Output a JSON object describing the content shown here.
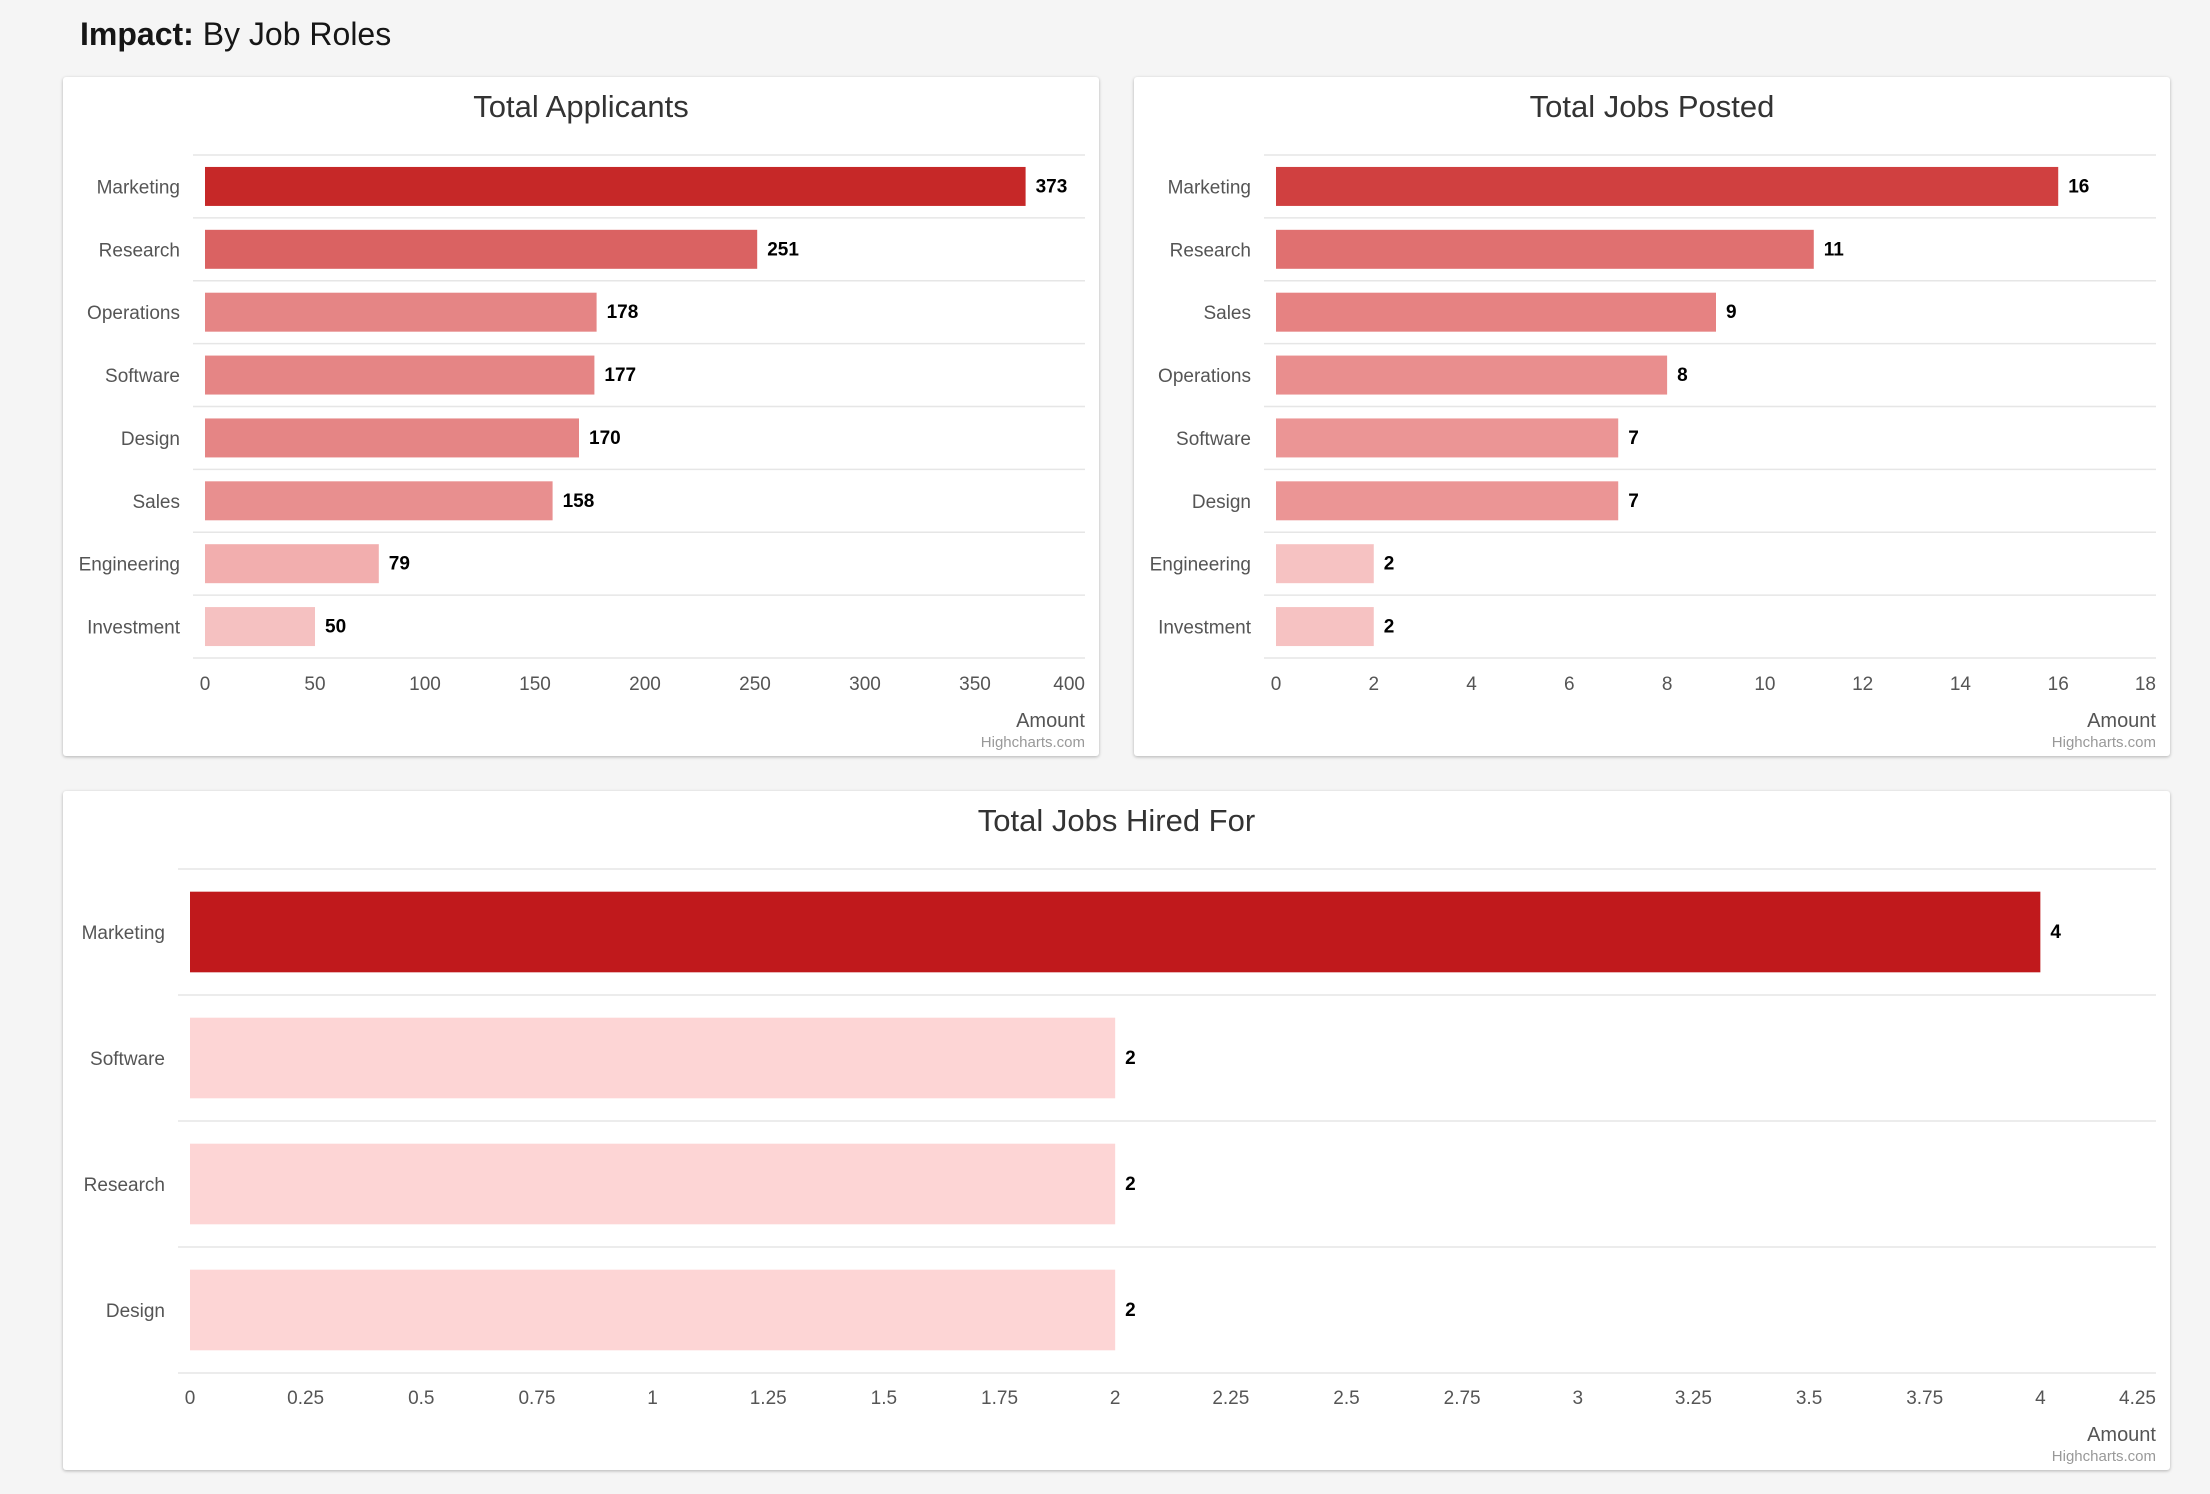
{
  "page": {
    "heading_bold": "Impact:",
    "heading_rest": "By Job Roles"
  },
  "chart_data": [
    {
      "type": "bar",
      "title": "Total Applicants",
      "categories": [
        "Marketing",
        "Research",
        "Operations",
        "Software",
        "Design",
        "Sales",
        "Engineering",
        "Investment"
      ],
      "values": [
        373,
        251,
        178,
        177,
        170,
        158,
        79,
        50
      ],
      "colors": [
        "#c62828",
        "#da6262",
        "#e58585",
        "#e58585",
        "#e58585",
        "#e88f8f",
        "#f2aeae",
        "#f5c1c1"
      ],
      "xlabel": "",
      "ylabel": "Amount",
      "ylim": [
        0,
        400
      ],
      "ticks": [
        "0",
        "50",
        "100",
        "150",
        "200",
        "250",
        "300",
        "350",
        "400"
      ],
      "credits": "Highcharts.com"
    },
    {
      "type": "bar",
      "title": "Total Jobs Posted",
      "categories": [
        "Marketing",
        "Research",
        "Sales",
        "Operations",
        "Software",
        "Design",
        "Engineering",
        "Investment"
      ],
      "values": [
        16,
        11,
        9,
        8,
        7,
        7,
        2,
        2
      ],
      "colors": [
        "#d04040",
        "#e07070",
        "#e68282",
        "#e98e8e",
        "#eb9595",
        "#eb9595",
        "#f6c2c2",
        "#f6c2c2"
      ],
      "xlabel": "",
      "ylabel": "Amount",
      "ylim": [
        0,
        18
      ],
      "ticks": [
        "0",
        "2",
        "4",
        "6",
        "8",
        "10",
        "12",
        "14",
        "16",
        "18"
      ],
      "credits": "Highcharts.com"
    },
    {
      "type": "bar",
      "title": "Total Jobs Hired For",
      "categories": [
        "Marketing",
        "Software",
        "Research",
        "Design"
      ],
      "values": [
        4,
        2,
        2,
        2
      ],
      "colors": [
        "#c0191c",
        "#fdd5d5",
        "#fdd5d5",
        "#fdd5d5"
      ],
      "xlabel": "",
      "ylabel": "Amount",
      "ylim": [
        0,
        4.25
      ],
      "ticks": [
        "0",
        "0.25",
        "0.5",
        "0.75",
        "1",
        "1.25",
        "1.5",
        "1.75",
        "2",
        "2.25",
        "2.5",
        "2.75",
        "3",
        "3.25",
        "3.5",
        "3.75",
        "4",
        "4.25"
      ],
      "credits": "Highcharts.com"
    }
  ]
}
